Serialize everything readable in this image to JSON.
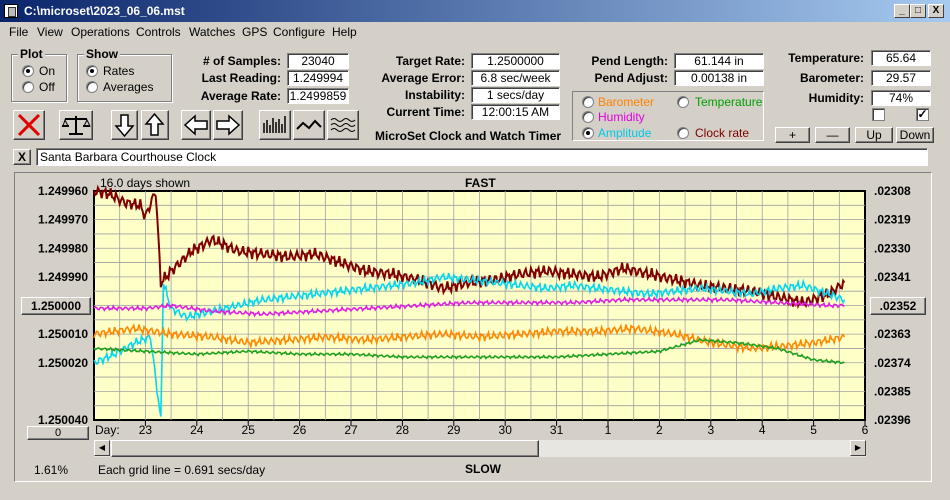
{
  "window": {
    "title": "C:\\microset\\2023_06_06.mst",
    "min_label": "_",
    "max_label": "□",
    "close_label": "X"
  },
  "menu": [
    "File",
    "View",
    "Operations",
    "Controls",
    "Watches",
    "GPS",
    "Configure",
    "Help"
  ],
  "plot_group": {
    "legend": "Plot",
    "on": "On",
    "off": "Off",
    "selected": "On"
  },
  "show_group": {
    "legend": "Show",
    "rates": "Rates",
    "averages": "Averages",
    "selected": "Rates"
  },
  "stats": {
    "samples_label": "# of Samples:",
    "samples": "23040",
    "last_reading_label": "Last Reading:",
    "last_reading": "1.249994",
    "average_rate_label": "Average Rate:",
    "average_rate": "1.2499859"
  },
  "rates": {
    "target_rate_label": "Target Rate:",
    "target_rate": "1.2500000",
    "average_error_label": "Average Error:",
    "average_error": "6.8 sec/week",
    "instability_label": "Instability:",
    "instability": "1 secs/day",
    "current_time_label": "Current Time:",
    "current_time": "12:00:15 AM"
  },
  "app_caption": "MicroSet Clock and Watch Timer",
  "pendulum": {
    "length_label": "Pend Length:",
    "length": "61.144 in",
    "adjust_label": "Pend Adjust:",
    "adjust": "0.00138 in"
  },
  "trace_select": {
    "options": [
      {
        "label": "Barometer",
        "color": "#ff8000"
      },
      {
        "label": "Temperature",
        "color": "#00a000"
      },
      {
        "label": "Humidity",
        "color": "#e000e0"
      },
      {
        "label": "Amplitude",
        "color": "#00c8e8"
      },
      {
        "label": "Clock rate",
        "color": "#800000"
      }
    ],
    "selected": "Amplitude"
  },
  "environment": {
    "temperature_label": "Temperature:",
    "temperature": "65.64",
    "barometer_label": "Barometer:",
    "barometer": "29.57",
    "humidity_label": "Humidity:",
    "humidity": "74%"
  },
  "adjust_buttons": {
    "plus": "+",
    "minus": "—",
    "up": "Up",
    "down": "Down"
  },
  "checkbox_right_checked": "✓",
  "watch_clear_label": "X",
  "watch_name": "Santa Barbara Courthouse Clock",
  "chart_data": {
    "type": "line",
    "title": "FAST",
    "bottom_label": "SLOW",
    "days_shown": "16.0 days shown",
    "grid_note": "Each grid line = 0.691 secs/day",
    "left_axis_ticks": [
      "1.249960",
      "1.249970",
      "1.249980",
      "1.249990",
      "1.250000",
      "1.250010",
      "1.250020",
      "1.250040"
    ],
    "right_axis_ticks": [
      ".02308",
      ".02319",
      ".02330",
      ".02341",
      ".02352",
      ".02363",
      ".02374",
      ".02385",
      ".02396"
    ],
    "x_label": "Day:",
    "x_ticks": [
      "23",
      "24",
      "25",
      "26",
      "27",
      "28",
      "29",
      "30",
      "31",
      "1",
      "2",
      "3",
      "4",
      "5",
      "6"
    ],
    "ylim_left": [
      1.25004,
      1.24996
    ],
    "series": [
      {
        "name": "Clock rate",
        "color": "#800000",
        "points": [
          [
            0,
            1.24996
          ],
          [
            0.3,
            1.249961
          ],
          [
            0.6,
            1.249964
          ],
          [
            0.9,
            1.249965
          ],
          [
            1.0,
            1.249969
          ],
          [
            1.2,
            1.24996
          ],
          [
            1.3,
            1.249992
          ],
          [
            1.5,
            1.249988
          ],
          [
            1.9,
            1.249981
          ],
          [
            2.3,
            1.249977
          ],
          [
            2.8,
            1.249981
          ],
          [
            3.3,
            1.249982
          ],
          [
            3.8,
            1.249983
          ],
          [
            4.3,
            1.249982
          ],
          [
            4.8,
            1.249985
          ],
          [
            5.3,
            1.249988
          ],
          [
            5.8,
            1.249989
          ],
          [
            6.3,
            1.249991
          ],
          [
            6.8,
            1.249994
          ],
          [
            7.3,
            1.249992
          ],
          [
            7.8,
            1.249991
          ],
          [
            8.3,
            1.249989
          ],
          [
            8.8,
            1.249988
          ],
          [
            9.3,
            1.249989
          ],
          [
            9.8,
            1.24999
          ],
          [
            10.3,
            1.249987
          ],
          [
            10.8,
            1.249989
          ],
          [
            11.3,
            1.249991
          ],
          [
            11.8,
            1.249993
          ],
          [
            12.3,
            1.249994
          ],
          [
            12.8,
            1.249995
          ],
          [
            13.3,
            1.249997
          ],
          [
            13.8,
            1.249999
          ],
          [
            14.3,
            1.249996
          ],
          [
            14.6,
            1.249992
          ]
        ]
      },
      {
        "name": "Amplitude",
        "color": "#00d8f0",
        "points": [
          [
            0,
            1.25002
          ],
          [
            0.4,
            1.250017
          ],
          [
            0.8,
            1.250013
          ],
          [
            1.1,
            1.250011
          ],
          [
            1.3,
            1.25004
          ],
          [
            1.35,
            1.249992
          ],
          [
            1.5,
            1.250001
          ],
          [
            1.8,
            1.250004
          ],
          [
            2.3,
            1.250002
          ],
          [
            2.8,
            1.25
          ],
          [
            3.3,
            1.249998
          ],
          [
            3.8,
            1.249997
          ],
          [
            4.3,
            1.249996
          ],
          [
            4.8,
            1.249995
          ],
          [
            5.3,
            1.249994
          ],
          [
            5.8,
            1.249993
          ],
          [
            6.3,
            1.249992
          ],
          [
            6.8,
            1.24999
          ],
          [
            7.3,
            1.249991
          ],
          [
            7.8,
            1.249992
          ],
          [
            8.3,
            1.249993
          ],
          [
            8.8,
            1.249994
          ],
          [
            9.3,
            1.249993
          ],
          [
            9.8,
            1.249994
          ],
          [
            10.3,
            1.249995
          ],
          [
            10.8,
            1.249996
          ],
          [
            11.3,
            1.249995
          ],
          [
            11.8,
            1.249994
          ],
          [
            12.3,
            1.249995
          ],
          [
            12.8,
            1.249996
          ],
          [
            13.3,
            1.249994
          ],
          [
            13.8,
            1.249993
          ],
          [
            14.3,
            1.249996
          ],
          [
            14.6,
            1.249998
          ]
        ]
      },
      {
        "name": "Humidity",
        "color": "#e020e0",
        "points": [
          [
            0,
            1.250001
          ],
          [
            1.0,
            1.250001
          ],
          [
            1.5,
            1.25
          ],
          [
            2.3,
            1.250002
          ],
          [
            3.3,
            1.250003
          ],
          [
            4.3,
            1.250002
          ],
          [
            5.3,
            1.250001
          ],
          [
            6.3,
            1.25
          ],
          [
            7.3,
            1.249999
          ],
          [
            8.3,
            1.249999
          ],
          [
            9.3,
            1.249999
          ],
          [
            10.3,
            1.249998
          ],
          [
            11.3,
            1.249998
          ],
          [
            12.3,
            1.249998
          ],
          [
            13.3,
            1.249999
          ],
          [
            14.3,
            1.25
          ],
          [
            14.6,
            1.25
          ]
        ]
      },
      {
        "name": "Barometer",
        "color": "#ff8800",
        "points": [
          [
            0,
            1.25001
          ],
          [
            0.8,
            1.250008
          ],
          [
            1.5,
            1.25001
          ],
          [
            2.3,
            1.250011
          ],
          [
            3.0,
            1.250013
          ],
          [
            3.8,
            1.250012
          ],
          [
            4.5,
            1.250011
          ],
          [
            5.3,
            1.250012
          ],
          [
            6.0,
            1.250011
          ],
          [
            6.8,
            1.25001
          ],
          [
            7.5,
            1.250011
          ],
          [
            8.3,
            1.25001
          ],
          [
            9.0,
            1.250009
          ],
          [
            9.8,
            1.250009
          ],
          [
            10.5,
            1.250008
          ],
          [
            11.3,
            1.25001
          ],
          [
            12.0,
            1.250013
          ],
          [
            12.8,
            1.250015
          ],
          [
            13.5,
            1.250014
          ],
          [
            14.0,
            1.250013
          ],
          [
            14.6,
            1.250011
          ]
        ]
      },
      {
        "name": "Temperature",
        "color": "#20a020",
        "points": [
          [
            0,
            1.250015
          ],
          [
            1.0,
            1.250016
          ],
          [
            2.0,
            1.250017
          ],
          [
            3.0,
            1.250016
          ],
          [
            4.0,
            1.250017
          ],
          [
            5.0,
            1.250017
          ],
          [
            6.0,
            1.250018
          ],
          [
            7.0,
            1.250018
          ],
          [
            8.0,
            1.250018
          ],
          [
            9.0,
            1.250018
          ],
          [
            10.0,
            1.250017
          ],
          [
            11.0,
            1.250016
          ],
          [
            11.8,
            1.250012
          ],
          [
            12.5,
            1.250013
          ],
          [
            13.3,
            1.250015
          ],
          [
            14.0,
            1.250019
          ],
          [
            14.6,
            1.25002
          ]
        ]
      }
    ]
  },
  "left_indicator": "1.250000",
  "right_indicator": ".02352",
  "scroll_value": "0",
  "percent_label": "1.61%"
}
